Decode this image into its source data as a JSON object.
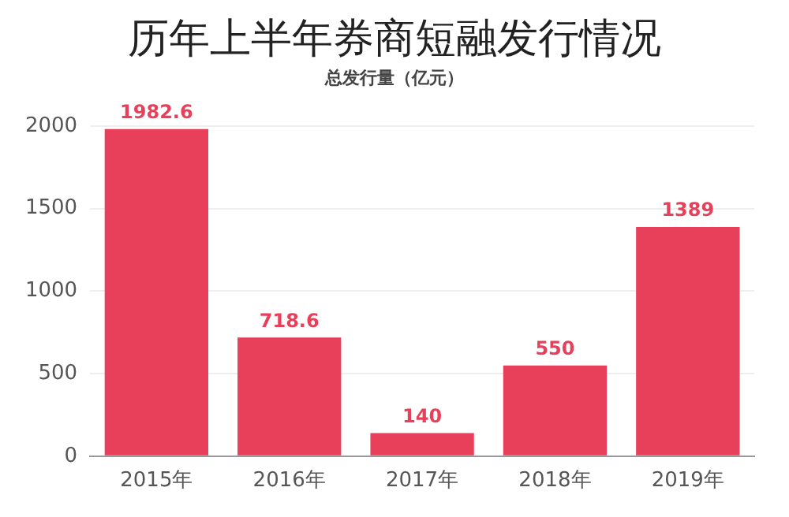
{
  "chart_data": {
    "type": "bar",
    "title": "历年上半年券商短融发行情况",
    "subtitle": "总发行量（亿元）",
    "categories": [
      "2015年",
      "2016年",
      "2017年",
      "2018年",
      "2019年"
    ],
    "values": [
      1982.6,
      718.6,
      140,
      550,
      1389
    ],
    "color": "#e8405a",
    "ylim": [
      0,
      2000
    ],
    "yticks": [
      0,
      500,
      1000,
      1500,
      2000
    ],
    "grid": "y",
    "data_labels": true
  }
}
